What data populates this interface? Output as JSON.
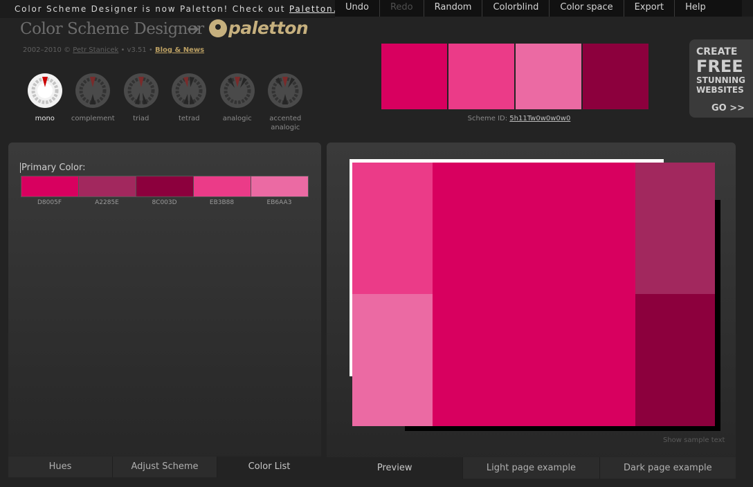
{
  "banner": {
    "prefix": "Color Scheme Designer is now Paletton! Check out ",
    "link": "Paletton.com"
  },
  "menu": [
    {
      "label": "Undo",
      "disabled": false
    },
    {
      "label": "Redo",
      "disabled": true
    },
    {
      "label": "Random",
      "disabled": false
    },
    {
      "label": "Colorblind",
      "disabled": false
    },
    {
      "label": "Color space",
      "disabled": false
    },
    {
      "label": "Export",
      "disabled": false
    },
    {
      "label": "Help",
      "disabled": false
    }
  ],
  "logo": {
    "old": "Color Scheme Designer",
    "arrow": "➔",
    "new": "paletton"
  },
  "credits": {
    "years": "2002–2010 © ",
    "author": "Petr Stanicek",
    "version": " • v3.51 • ",
    "blog": "Blog & News"
  },
  "schemes": [
    {
      "label": "mono",
      "active": true
    },
    {
      "label": "complement",
      "active": false
    },
    {
      "label": "triad",
      "active": false
    },
    {
      "label": "tetrad",
      "active": false
    },
    {
      "label": "analogic",
      "active": false
    },
    {
      "label": "accented analogic",
      "active": false
    }
  ],
  "swatches": [
    "#D8005F",
    "#EB3B88",
    "#EB6AA3",
    "#8C003D"
  ],
  "scheme_id": {
    "label": "Scheme ID: ",
    "value": "5h11Tw0w0w0w0"
  },
  "ad": {
    "l1": "CREATE",
    "l2": "FREE",
    "l3a": "STUNNING",
    "l3b": "WEBSITES",
    "go": "GO >>"
  },
  "left_panel": {
    "primary_label": "Primary Color:",
    "colors": [
      {
        "hex": "#D8005F",
        "code": "D8005F"
      },
      {
        "hex": "#A2285E",
        "code": "A2285E"
      },
      {
        "hex": "#8C003D",
        "code": "8C003D"
      },
      {
        "hex": "#EB3B88",
        "code": "EB3B88"
      },
      {
        "hex": "#EB6AA3",
        "code": "EB6AA3"
      }
    ],
    "tabs": [
      {
        "label": "Hues",
        "active": false
      },
      {
        "label": "Adjust Scheme",
        "active": false
      },
      {
        "label": "Color List",
        "active": true
      }
    ]
  },
  "right_panel": {
    "show_sample": "Show sample text",
    "tabs": [
      {
        "label": "Preview",
        "active": true
      },
      {
        "label": "Light page example",
        "active": false
      },
      {
        "label": "Dark page example",
        "active": false
      }
    ]
  },
  "colors": {
    "primary": "#D8005F",
    "light1": "#EB3B88",
    "light2": "#EB6AA3",
    "dark1": "#A2285E",
    "dark2": "#8C003D"
  }
}
